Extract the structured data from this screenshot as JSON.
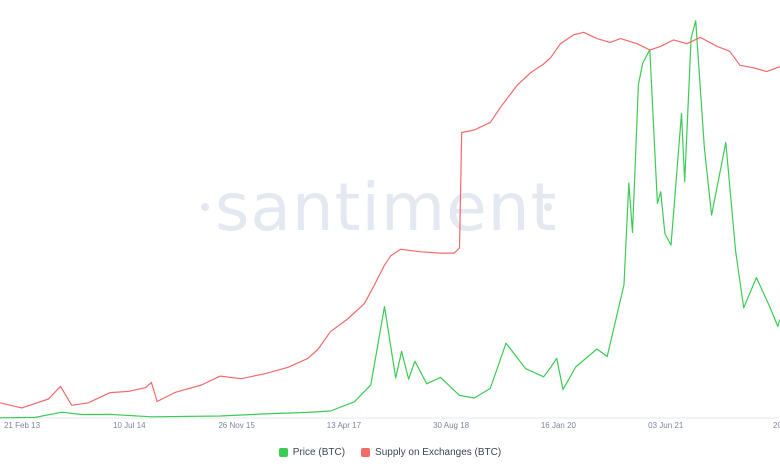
{
  "chart_data": {
    "type": "line",
    "watermark": "santiment",
    "x_tick_labels": [
      "21 Feb 13",
      "10 Jul 14",
      "26 Nov 15",
      "13 Apr 17",
      "30 Aug 18",
      "16 Jan 20",
      "03 Jun 21",
      "20"
    ],
    "xlim": [
      "2013-02-21",
      "2022-12-01"
    ],
    "grid": false,
    "legend_position": "bottom-center",
    "series": [
      {
        "name": "Price (BTC)",
        "color": "#3ccb55",
        "axis": "right",
        "ylim": [
          0,
          70000
        ],
        "points": [
          [
            "2013-02-21",
            30
          ],
          [
            "2013-08-01",
            110
          ],
          [
            "2013-12-01",
            1000
          ],
          [
            "2014-03-01",
            600
          ],
          [
            "2014-07-10",
            620
          ],
          [
            "2015-01-15",
            200
          ],
          [
            "2015-11-26",
            350
          ],
          [
            "2016-06-15",
            700
          ],
          [
            "2016-12-31",
            960
          ],
          [
            "2017-04-13",
            1200
          ],
          [
            "2017-08-01",
            2800
          ],
          [
            "2017-10-15",
            5700
          ],
          [
            "2017-12-17",
            19200
          ],
          [
            "2018-02-06",
            6900
          ],
          [
            "2018-03-05",
            11500
          ],
          [
            "2018-04-06",
            6700
          ],
          [
            "2018-05-05",
            9800
          ],
          [
            "2018-06-28",
            5900
          ],
          [
            "2018-08-30",
            7000
          ],
          [
            "2018-11-25",
            3900
          ],
          [
            "2019-02-01",
            3450
          ],
          [
            "2019-04-15",
            5100
          ],
          [
            "2019-06-26",
            12900
          ],
          [
            "2019-09-24",
            8500
          ],
          [
            "2019-12-15",
            7100
          ],
          [
            "2020-01-16",
            8700
          ],
          [
            "2020-02-13",
            10300
          ],
          [
            "2020-03-13",
            4900
          ],
          [
            "2020-05-10",
            8800
          ],
          [
            "2020-08-15",
            11900
          ],
          [
            "2020-10-01",
            10600
          ],
          [
            "2020-12-17",
            23000
          ],
          [
            "2021-01-08",
            40500
          ],
          [
            "2021-01-25",
            32000
          ],
          [
            "2021-02-21",
            57500
          ],
          [
            "2021-03-13",
            61200
          ],
          [
            "2021-04-14",
            63500
          ],
          [
            "2021-05-19",
            37000
          ],
          [
            "2021-06-03",
            39000
          ],
          [
            "2021-06-22",
            31800
          ],
          [
            "2021-07-20",
            29800
          ],
          [
            "2021-09-06",
            52500
          ],
          [
            "2021-09-21",
            40700
          ],
          [
            "2021-10-20",
            65500
          ],
          [
            "2021-11-10",
            68500
          ],
          [
            "2021-12-20",
            46500
          ],
          [
            "2022-01-22",
            35000
          ],
          [
            "2022-03-28",
            47500
          ],
          [
            "2022-05-12",
            28800
          ],
          [
            "2022-06-18",
            19000
          ],
          [
            "2022-08-15",
            24200
          ],
          [
            "2022-10-15",
            19200
          ],
          [
            "2022-11-21",
            15800
          ],
          [
            "2022-12-01",
            17000
          ]
        ]
      },
      {
        "name": "Supply on Exchanges (BTC)",
        "color": "#f26a6a",
        "axis": "left",
        "ylim": [
          0,
          3200000
        ],
        "points": [
          [
            "2013-02-21",
            120000
          ],
          [
            "2013-06-01",
            80000
          ],
          [
            "2013-10-01",
            150000
          ],
          [
            "2013-11-25",
            250000
          ],
          [
            "2014-01-15",
            100000
          ],
          [
            "2014-04-01",
            120000
          ],
          [
            "2014-07-10",
            200000
          ],
          [
            "2014-10-01",
            210000
          ],
          [
            "2014-12-20",
            240000
          ],
          [
            "2015-01-15",
            280000
          ],
          [
            "2015-02-10",
            130000
          ],
          [
            "2015-05-01",
            200000
          ],
          [
            "2015-09-01",
            260000
          ],
          [
            "2015-11-26",
            330000
          ],
          [
            "2016-03-01",
            310000
          ],
          [
            "2016-06-20",
            350000
          ],
          [
            "2016-10-01",
            400000
          ],
          [
            "2016-12-31",
            470000
          ],
          [
            "2017-02-15",
            540000
          ],
          [
            "2017-04-13",
            680000
          ],
          [
            "2017-07-01",
            780000
          ],
          [
            "2017-09-15",
            900000
          ],
          [
            "2017-11-01",
            1050000
          ],
          [
            "2017-12-15",
            1200000
          ],
          [
            "2018-01-15",
            1280000
          ],
          [
            "2018-03-01",
            1330000
          ],
          [
            "2018-06-01",
            1310000
          ],
          [
            "2018-08-30",
            1300000
          ],
          [
            "2018-11-01",
            1300000
          ],
          [
            "2018-11-25",
            1340000
          ],
          [
            "2018-12-05",
            2250000
          ],
          [
            "2019-02-01",
            2270000
          ],
          [
            "2019-04-15",
            2330000
          ],
          [
            "2019-06-01",
            2450000
          ],
          [
            "2019-08-15",
            2620000
          ],
          [
            "2019-10-15",
            2720000
          ],
          [
            "2019-12-15",
            2790000
          ],
          [
            "2020-01-16",
            2840000
          ],
          [
            "2020-03-01",
            2950000
          ],
          [
            "2020-05-01",
            3020000
          ],
          [
            "2020-06-15",
            3040000
          ],
          [
            "2020-08-15",
            2990000
          ],
          [
            "2020-10-15",
            2960000
          ],
          [
            "2020-12-01",
            2990000
          ],
          [
            "2021-02-15",
            2950000
          ],
          [
            "2021-04-15",
            2900000
          ],
          [
            "2021-06-03",
            2930000
          ],
          [
            "2021-08-01",
            2980000
          ],
          [
            "2021-10-01",
            2950000
          ],
          [
            "2021-12-01",
            3000000
          ],
          [
            "2022-02-15",
            2930000
          ],
          [
            "2022-04-15",
            2890000
          ],
          [
            "2022-06-01",
            2780000
          ],
          [
            "2022-08-01",
            2760000
          ],
          [
            "2022-10-01",
            2730000
          ],
          [
            "2022-12-01",
            2770000
          ]
        ]
      }
    ]
  }
}
